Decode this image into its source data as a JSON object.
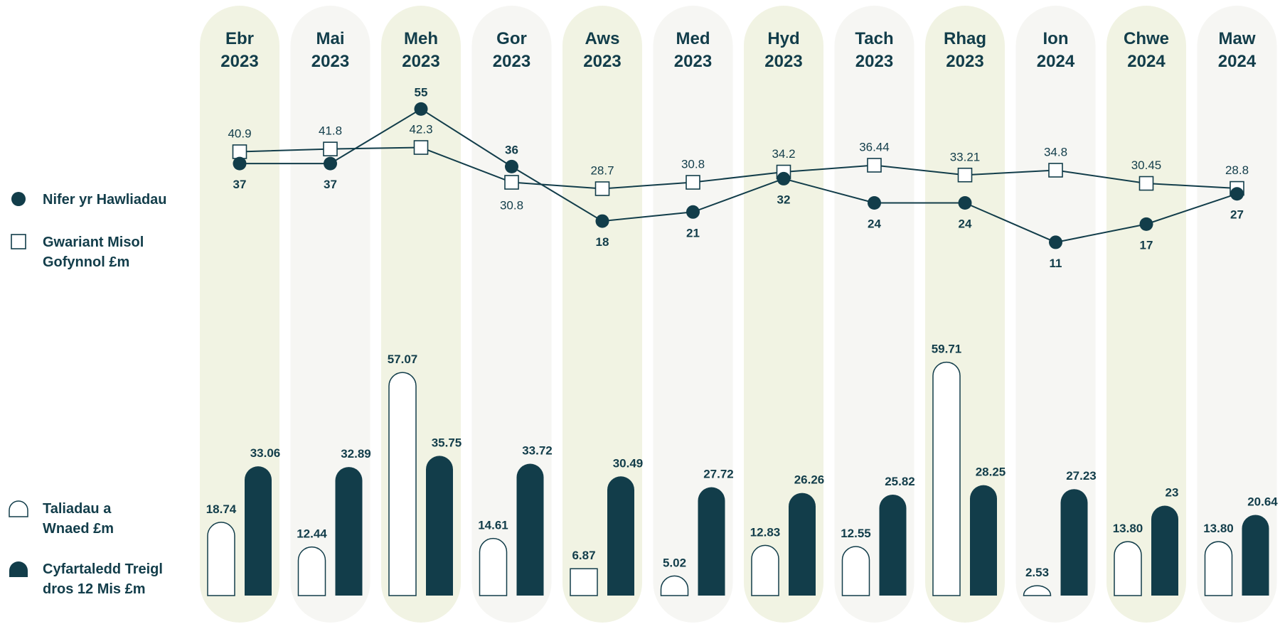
{
  "chart_data": {
    "type": "bar",
    "categories": [
      [
        "Ebr",
        "2023"
      ],
      [
        "Mai",
        "2023"
      ],
      [
        "Meh",
        "2023"
      ],
      [
        "Gor",
        "2023"
      ],
      [
        "Aws",
        "2023"
      ],
      [
        "Med",
        "2023"
      ],
      [
        "Hyd",
        "2023"
      ],
      [
        "Tach",
        "2023"
      ],
      [
        "Rhag",
        "2023"
      ],
      [
        "Ion",
        "2024"
      ],
      [
        "Chwe",
        "2024"
      ],
      [
        "Maw",
        "2024"
      ]
    ],
    "series": [
      {
        "name": "Nifer yr Hawliadau",
        "type": "line",
        "marker": "circle",
        "values": [
          37,
          37,
          55,
          36,
          18,
          21,
          32,
          24,
          24,
          11,
          17,
          27
        ],
        "labels": [
          "37",
          "37",
          "55",
          "36",
          "18",
          "21",
          "32",
          "24",
          "24",
          "11",
          "17",
          "27"
        ]
      },
      {
        "name": "Gwariant Misol Gofynnol £m",
        "type": "line",
        "marker": "square",
        "values": [
          40.9,
          41.8,
          42.3,
          30.8,
          28.7,
          30.8,
          34.2,
          36.44,
          33.21,
          34.8,
          30.45,
          28.8
        ],
        "labels": [
          "40.9",
          "41.8",
          "42.3",
          "30.8",
          "28.7",
          "30.8",
          "34.2",
          "36.44",
          "33.21",
          "34.8",
          "30.45",
          "28.8"
        ]
      },
      {
        "name": "Taliadau a Wnaed £m",
        "type": "bar",
        "fill": "outline",
        "values": [
          18.74,
          12.44,
          57.07,
          14.61,
          6.87,
          5.02,
          12.83,
          12.55,
          59.71,
          2.53,
          13.8,
          13.8
        ],
        "labels": [
          "18.74",
          "12.44",
          "57.07",
          "14.61",
          "6.87",
          "5.02",
          "12.83",
          "12.55",
          "59.71",
          "2.53",
          "13.80",
          "13.80"
        ]
      },
      {
        "name": "Cyfartaledd Treigl dros 12 Mis £m",
        "type": "bar",
        "fill": "solid",
        "values": [
          33.06,
          32.89,
          35.75,
          33.72,
          30.49,
          27.72,
          26.26,
          25.82,
          28.25,
          27.23,
          23,
          20.64
        ],
        "labels": [
          "33.06",
          "32.89",
          "35.75",
          "33.72",
          "30.49",
          "27.72",
          "26.26",
          "25.82",
          "28.25",
          "27.23",
          "23",
          "20.64"
        ]
      }
    ],
    "legend": {
      "placement": "left",
      "items": [
        {
          "lines": [
            "Nifer yr Hawliadau"
          ],
          "marker": "circle"
        },
        {
          "lines": [
            "Gwariant Misol",
            "Gofynnol £m"
          ],
          "marker": "square"
        },
        {
          "lines": [
            "Taliadau a",
            "Wnaed £m"
          ],
          "marker": "arch-outline"
        },
        {
          "lines": [
            "Cyfartaledd Treigl",
            "dros 12 Mis £m"
          ],
          "marker": "arch-solid"
        }
      ]
    },
    "colors": {
      "dark": "#123d4a",
      "column_a": "#f1f3e3",
      "column_b": "#f6f6f3",
      "outline_fill": "#ffffff"
    },
    "grid": false
  }
}
